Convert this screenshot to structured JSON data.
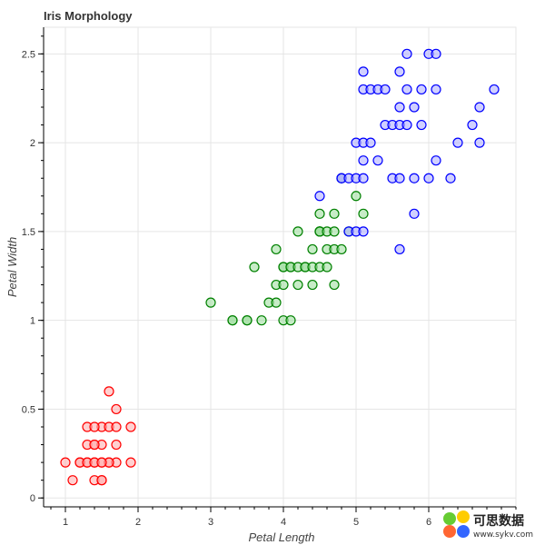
{
  "chart_data": {
    "type": "scatter",
    "title": "Iris Morphology",
    "xlabel": "Petal Length",
    "ylabel": "Petal Width",
    "xlim": [
      0.7,
      7.2
    ],
    "ylim": [
      -0.05,
      2.65
    ],
    "x_ticks": [
      1,
      2,
      3,
      4,
      5,
      6
    ],
    "y_ticks": [
      0,
      0.5,
      1,
      1.5,
      2,
      2.5
    ],
    "x_tick_labels": [
      "1",
      "2",
      "3",
      "4",
      "5",
      "6"
    ],
    "y_tick_labels": [
      "0",
      "0.5",
      "1",
      "1.5",
      "2",
      "2.5"
    ],
    "grid": true,
    "legend": "none",
    "series": [
      {
        "color": "#ff0000",
        "fill": "#ffaaaa",
        "points": [
          [
            1.0,
            0.2
          ],
          [
            1.1,
            0.1
          ],
          [
            1.2,
            0.2
          ],
          [
            1.3,
            0.2
          ],
          [
            1.3,
            0.3
          ],
          [
            1.3,
            0.4
          ],
          [
            1.4,
            0.2
          ],
          [
            1.4,
            0.3
          ],
          [
            1.4,
            0.1
          ],
          [
            1.5,
            0.2
          ],
          [
            1.5,
            0.4
          ],
          [
            1.5,
            0.1
          ],
          [
            1.5,
            0.3
          ],
          [
            1.6,
            0.2
          ],
          [
            1.6,
            0.4
          ],
          [
            1.6,
            0.6
          ],
          [
            1.7,
            0.2
          ],
          [
            1.7,
            0.4
          ],
          [
            1.7,
            0.3
          ],
          [
            1.7,
            0.5
          ],
          [
            1.9,
            0.2
          ],
          [
            1.9,
            0.4
          ],
          [
            1.2,
            0.2
          ],
          [
            1.4,
            0.4
          ],
          [
            1.5,
            0.1
          ],
          [
            1.3,
            0.2
          ],
          [
            1.6,
            0.2
          ],
          [
            1.4,
            0.2
          ],
          [
            1.5,
            0.2
          ],
          [
            1.4,
            0.3
          ]
        ]
      },
      {
        "color": "#008000",
        "fill": "#99dd99",
        "points": [
          [
            3.0,
            1.1
          ],
          [
            3.3,
            1.0
          ],
          [
            3.3,
            1.0
          ],
          [
            3.5,
            1.0
          ],
          [
            3.5,
            1.0
          ],
          [
            3.6,
            1.3
          ],
          [
            3.7,
            1.0
          ],
          [
            3.8,
            1.1
          ],
          [
            3.9,
            1.1
          ],
          [
            3.9,
            1.2
          ],
          [
            3.9,
            1.4
          ],
          [
            4.0,
            1.0
          ],
          [
            4.0,
            1.2
          ],
          [
            4.0,
            1.3
          ],
          [
            4.0,
            1.3
          ],
          [
            4.1,
            1.0
          ],
          [
            4.1,
            1.3
          ],
          [
            4.1,
            1.3
          ],
          [
            4.2,
            1.2
          ],
          [
            4.2,
            1.3
          ],
          [
            4.2,
            1.5
          ],
          [
            4.3,
            1.3
          ],
          [
            4.3,
            1.3
          ],
          [
            4.4,
            1.2
          ],
          [
            4.4,
            1.3
          ],
          [
            4.4,
            1.4
          ],
          [
            4.5,
            1.3
          ],
          [
            4.5,
            1.5
          ],
          [
            4.5,
            1.5
          ],
          [
            4.5,
            1.6
          ],
          [
            4.5,
            1.5
          ],
          [
            4.6,
            1.3
          ],
          [
            4.6,
            1.4
          ],
          [
            4.6,
            1.5
          ],
          [
            4.7,
            1.2
          ],
          [
            4.7,
            1.4
          ],
          [
            4.7,
            1.5
          ],
          [
            4.7,
            1.6
          ],
          [
            4.8,
            1.4
          ],
          [
            4.8,
            1.8
          ],
          [
            4.9,
            1.5
          ],
          [
            5.0,
            1.7
          ],
          [
            5.1,
            1.6
          ]
        ]
      },
      {
        "color": "#0000ff",
        "fill": "#aaaaff",
        "points": [
          [
            4.5,
            1.7
          ],
          [
            4.8,
            1.8
          ],
          [
            4.8,
            1.8
          ],
          [
            4.9,
            1.8
          ],
          [
            4.9,
            1.5
          ],
          [
            5.0,
            1.5
          ],
          [
            5.0,
            1.8
          ],
          [
            5.0,
            2.0
          ],
          [
            5.1,
            1.5
          ],
          [
            5.1,
            1.8
          ],
          [
            5.1,
            1.9
          ],
          [
            5.1,
            2.0
          ],
          [
            5.1,
            2.3
          ],
          [
            5.1,
            2.4
          ],
          [
            5.2,
            2.0
          ],
          [
            5.2,
            2.3
          ],
          [
            5.3,
            1.9
          ],
          [
            5.3,
            2.3
          ],
          [
            5.4,
            2.1
          ],
          [
            5.4,
            2.3
          ],
          [
            5.5,
            1.8
          ],
          [
            5.5,
            2.1
          ],
          [
            5.6,
            1.8
          ],
          [
            5.6,
            2.1
          ],
          [
            5.6,
            2.2
          ],
          [
            5.6,
            2.4
          ],
          [
            5.6,
            1.4
          ],
          [
            5.7,
            2.1
          ],
          [
            5.7,
            2.3
          ],
          [
            5.7,
            2.5
          ],
          [
            5.8,
            1.6
          ],
          [
            5.8,
            1.8
          ],
          [
            5.8,
            2.2
          ],
          [
            5.9,
            2.1
          ],
          [
            5.9,
            2.3
          ],
          [
            6.0,
            1.8
          ],
          [
            6.0,
            2.5
          ],
          [
            6.1,
            1.9
          ],
          [
            6.1,
            2.3
          ],
          [
            6.1,
            2.5
          ],
          [
            6.3,
            1.8
          ],
          [
            6.4,
            2.0
          ],
          [
            6.6,
            2.1
          ],
          [
            6.7,
            2.0
          ],
          [
            6.7,
            2.2
          ],
          [
            6.9,
            2.3
          ]
        ]
      }
    ]
  },
  "watermark": {
    "text": "可思数据",
    "url": "www.sykv.com"
  }
}
